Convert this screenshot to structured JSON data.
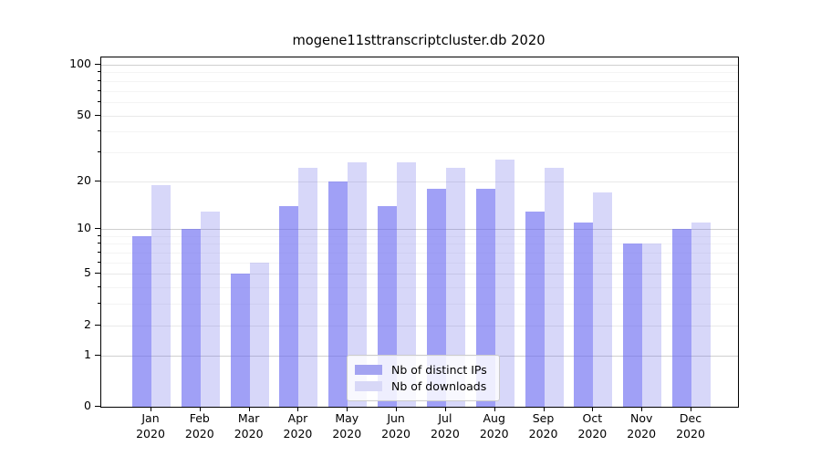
{
  "chart_data": {
    "type": "bar",
    "title": "mogene11sttranscriptcluster.db 2020",
    "categories": [
      "Jan",
      "Feb",
      "Mar",
      "Apr",
      "May",
      "Jun",
      "Jul",
      "Aug",
      "Sep",
      "Oct",
      "Nov",
      "Dec"
    ],
    "year_label": "2020",
    "series": [
      {
        "name": "Nb of distinct IPs",
        "color": "rgba(102,102,240,0.62)",
        "solid_color": "#a3a3f1",
        "values": [
          9,
          10,
          5,
          14,
          20,
          14,
          18,
          18,
          13,
          11,
          8,
          10
        ]
      },
      {
        "name": "Nb of downloads",
        "color": "rgba(102,102,232,0.26)",
        "solid_color": "#d8d8f7",
        "values": [
          19,
          13,
          6,
          24,
          26,
          26,
          24,
          27,
          24,
          17,
          8,
          11
        ]
      }
    ],
    "yscale": "log1p",
    "yticks": [
      0,
      1,
      2,
      5,
      10,
      20,
      50,
      100
    ],
    "minor_yticks": [
      3,
      4,
      6,
      7,
      8,
      9,
      30,
      40,
      60,
      70,
      80,
      90
    ],
    "ylim": [
      0,
      115
    ],
    "grid": "horizontal",
    "legend_position": "lower-center"
  }
}
